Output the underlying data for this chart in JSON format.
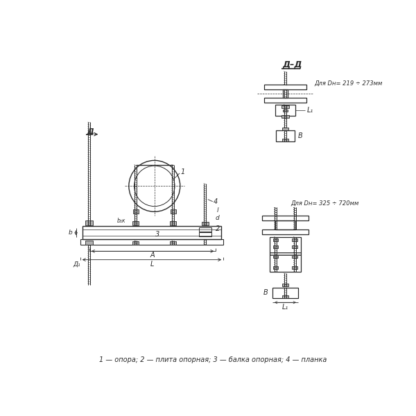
{
  "background_color": "#ffffff",
  "line_color": "#2a2a2a",
  "text_color": "#2a2a2a",
  "caption": "1 — опора; 2 — плита опорная; 3 — балка опорная; 4 — планка",
  "section_label": "Д–Д",
  "label_small": "Для Dн= 219 ÷ 273мм",
  "label_large": "Для Dн= 325 ÷ 720мм",
  "dim_L1": "L₁",
  "dim_B": "B",
  "dim_A": "A",
  "dim_L": "L",
  "dim_D1": "Д₁",
  "dim_b": "b",
  "dim_bk": "b₁к",
  "dim_l": "l",
  "dim_d": "d",
  "dim_l1": "l₁",
  "num1": "1",
  "num2": "2",
  "num3": "3",
  "num4": "4",
  "section_cut": "Д"
}
